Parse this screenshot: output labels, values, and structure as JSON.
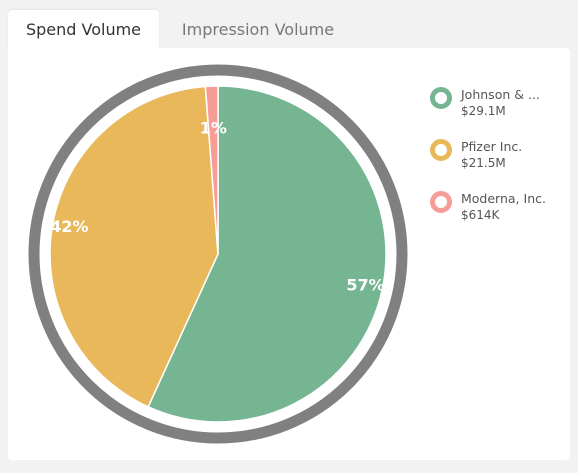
{
  "tabs": [
    {
      "label": "Spend Volume",
      "active": true
    },
    {
      "label": "Impression Volume",
      "active": false
    }
  ],
  "chart_data": {
    "type": "pie",
    "title": "",
    "series": [
      {
        "name": "Johnson & ...",
        "value_label": "$29.1M",
        "value": 29.1,
        "percent_label": "57%",
        "color": "#76b592"
      },
      {
        "name": "Pfizer Inc.",
        "value_label": "$21.5M",
        "value": 21.5,
        "percent_label": "42%",
        "color": "#e8b85a"
      },
      {
        "name": "Moderna, Inc.",
        "value_label": "$614K",
        "value": 0.614,
        "percent_label": "1%",
        "color": "#f59d96"
      }
    ],
    "start_angle_deg": 0,
    "direction": "clockwise",
    "ring_color": "#808080",
    "legend_position": "right"
  }
}
